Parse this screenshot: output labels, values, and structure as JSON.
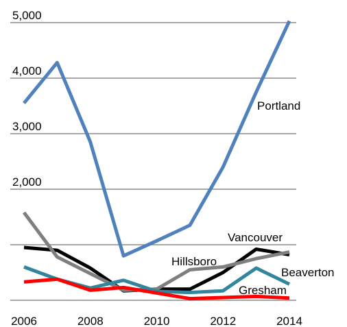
{
  "chart_data": {
    "type": "line",
    "x": [
      2006,
      2007,
      2008,
      2009,
      2010,
      2011,
      2012,
      2013,
      2014
    ],
    "series": [
      {
        "name": "Portland",
        "color": "#4f81bd",
        "values": [
          3550,
          4280,
          2850,
          800,
          1070,
          1350,
          2400,
          3750,
          5030
        ]
      },
      {
        "name": "Vancouver",
        "color": "#000000",
        "values": [
          950,
          900,
          580,
          170,
          200,
          200,
          500,
          920,
          820
        ]
      },
      {
        "name": "Hillsboro",
        "color": "#7f7f7f",
        "values": [
          1580,
          780,
          480,
          180,
          200,
          550,
          600,
          750,
          870
        ]
      },
      {
        "name": "Beaverton",
        "color": "#31859c",
        "values": [
          600,
          380,
          220,
          360,
          160,
          140,
          170,
          580,
          290
        ]
      },
      {
        "name": "Gresham",
        "color": "#ff0000",
        "values": [
          330,
          380,
          180,
          230,
          130,
          30,
          50,
          70,
          40
        ]
      }
    ],
    "xlim": [
      2006,
      2014
    ],
    "xticks": [
      2006,
      2008,
      2010,
      2012,
      2014
    ],
    "ylim": [
      0,
      5000
    ],
    "yticks": [
      {
        "value": 0,
        "label": null
      },
      {
        "value": 1000,
        "label": null
      },
      {
        "value": 2000,
        "label": "2,000"
      },
      {
        "value": 3000,
        "label": "3,000"
      },
      {
        "value": 4000,
        "label": "4,000"
      },
      {
        "value": 5000,
        "label": "5,000"
      }
    ],
    "grid": true
  }
}
